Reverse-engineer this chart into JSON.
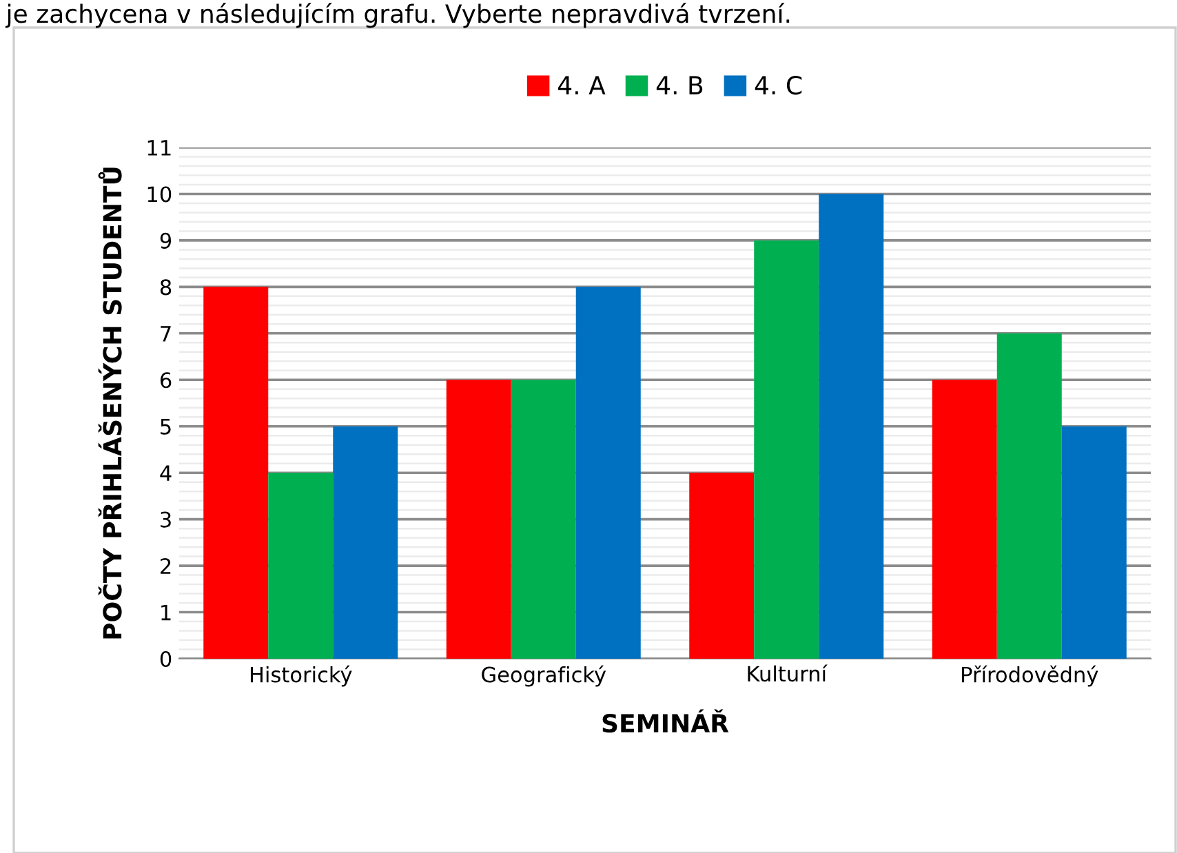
{
  "chart_data": {
    "type": "bar",
    "annotations": [
      "je zachycena v následujícím grafu. Vyberte nepravdivá tvrzení."
    ],
    "xlabel": "SEMINÁŘ",
    "ylabel": "POČTY PŘIHLÁŠENÝCH STUDENTŮ",
    "categories": [
      "Historický",
      "Geografický",
      "Kulturní",
      "Přírodovědný"
    ],
    "series": [
      {
        "name": "4. A",
        "color": "#ff0000",
        "values": [
          8,
          6,
          4,
          6
        ]
      },
      {
        "name": "4. B",
        "color": "#00b050",
        "values": [
          4,
          6,
          9,
          7
        ]
      },
      {
        "name": "4. C",
        "color": "#0070c0",
        "values": [
          5,
          8,
          10,
          5
        ]
      }
    ],
    "ylim": [
      0,
      11
    ],
    "yticks": [
      0,
      1,
      2,
      3,
      4,
      5,
      6,
      7,
      8,
      9,
      10,
      11
    ],
    "grid": "y",
    "legend": "top"
  }
}
